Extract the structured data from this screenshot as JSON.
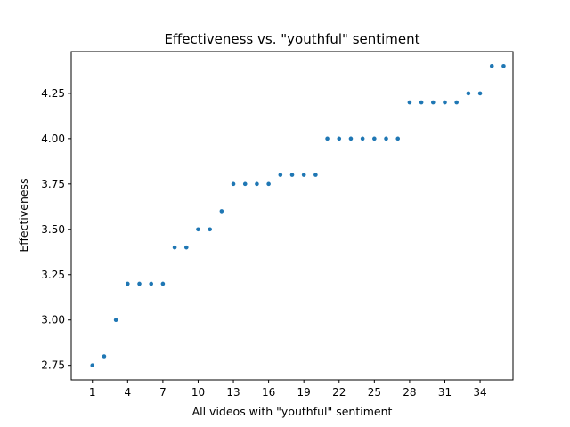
{
  "chart_data": {
    "type": "scatter",
    "title": "Effectiveness vs. \"youthful\" sentiment",
    "xlabel": "All videos with \"youthful\" sentiment",
    "ylabel": "Effectiveness",
    "xlim": [
      -0.8,
      36.8
    ],
    "ylim": [
      2.67,
      4.48
    ],
    "xticks": [
      1,
      4,
      7,
      10,
      13,
      16,
      19,
      22,
      25,
      28,
      31,
      34
    ],
    "yticks": [
      2.75,
      3.0,
      3.25,
      3.5,
      3.75,
      4.0,
      4.25
    ],
    "ytick_labels": [
      "2.75",
      "3.00",
      "3.25",
      "3.50",
      "3.75",
      "4.00",
      "4.25"
    ],
    "grid": false,
    "marker_color": "#1f77b4",
    "x": [
      1,
      2,
      3,
      4,
      5,
      6,
      7,
      8,
      9,
      10,
      11,
      12,
      13,
      14,
      15,
      16,
      17,
      18,
      19,
      20,
      21,
      22,
      23,
      24,
      25,
      26,
      27,
      28,
      29,
      30,
      31,
      32,
      33,
      34,
      35,
      36
    ],
    "y": [
      2.75,
      2.8,
      3.0,
      3.2,
      3.2,
      3.2,
      3.2,
      3.4,
      3.4,
      3.5,
      3.5,
      3.6,
      3.75,
      3.75,
      3.75,
      3.75,
      3.8,
      3.8,
      3.8,
      3.8,
      4.0,
      4.0,
      4.0,
      4.0,
      4.0,
      4.0,
      4.0,
      4.2,
      4.2,
      4.2,
      4.2,
      4.2,
      4.25,
      4.25,
      4.4,
      4.4
    ]
  }
}
